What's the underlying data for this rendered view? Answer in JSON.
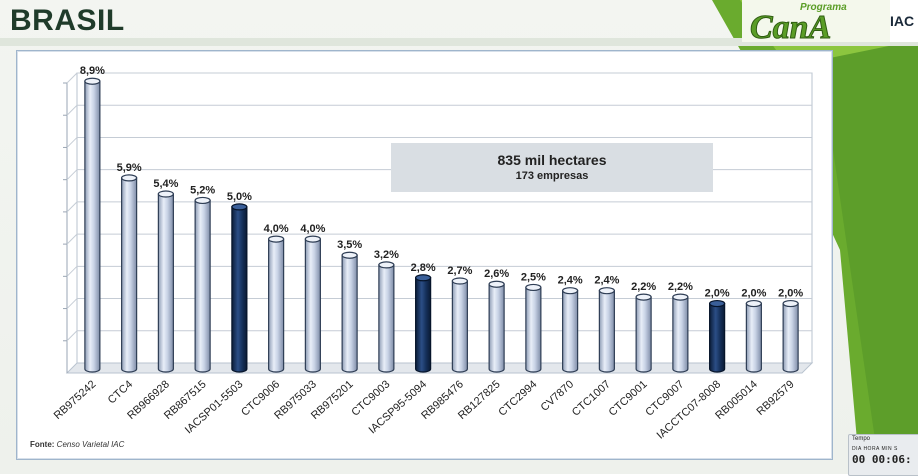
{
  "header": {
    "title": "BRASIL"
  },
  "logo": {
    "small_text": "Programa",
    "main_text": "CanA",
    "side_text": "IAC"
  },
  "info_box": {
    "main": "835 mil hectares",
    "sub": "173 empresas"
  },
  "source": {
    "label": "Fonte:",
    "value": "Censo Varietal  IAC"
  },
  "timer": {
    "title": "Tempo",
    "labels": "DIA  HORA  MIN  S",
    "value": "00  00:06:"
  },
  "colors": {
    "light_bar": "#c9d3e6",
    "dark_bar": "#15305a",
    "green": "#79b83a"
  },
  "chart_data": {
    "type": "bar",
    "categories": [
      "RB975242",
      "CTC4",
      "RB966928",
      "RB867515",
      "IACSP01-5503",
      "CTC9006",
      "RB975033",
      "RB975201",
      "CTC9003",
      "IACSP95-5094",
      "RB985476",
      "RB127825",
      "CTC2994",
      "CV7870",
      "CTC1007",
      "CTC9001",
      "CTC9007",
      "IACCTC07-8008",
      "RB005014",
      "RB92579"
    ],
    "values": [
      8.9,
      5.9,
      5.4,
      5.2,
      5.0,
      4.0,
      4.0,
      3.5,
      3.2,
      2.8,
      2.7,
      2.6,
      2.5,
      2.4,
      2.4,
      2.2,
      2.2,
      2.0,
      2.0,
      2.0
    ],
    "labels": [
      "8,9%",
      "5,9%",
      "5,4%",
      "5,2%",
      "5,0%",
      "4,0%",
      "4,0%",
      "3,5%",
      "3,2%",
      "2,8%",
      "2,7%",
      "2,6%",
      "2,5%",
      "2,4%",
      "2,4%",
      "2,2%",
      "2,2%",
      "2,0%",
      "2,0%",
      "2,0%"
    ],
    "highlighted": [
      false,
      false,
      false,
      false,
      true,
      false,
      false,
      false,
      false,
      true,
      false,
      false,
      false,
      false,
      false,
      false,
      false,
      true,
      false,
      false
    ],
    "ylim": [
      0,
      9
    ],
    "grid": true,
    "title": "",
    "xlabel": "",
    "ylabel": ""
  }
}
